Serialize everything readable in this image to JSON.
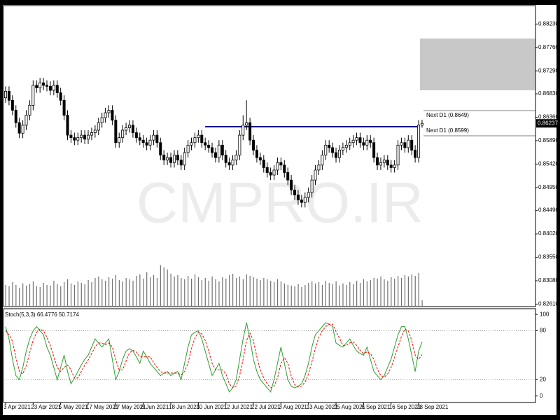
{
  "watermark": "CMPRO.IR",
  "chart_data": [
    {
      "type": "candlestick",
      "categories": [
        "3 Apr 2021",
        null,
        null,
        null,
        null,
        null,
        null,
        null,
        "23 Apr 2021",
        null,
        null,
        null,
        null,
        null,
        null,
        null,
        "5 May 2021",
        null,
        null,
        null,
        null,
        null,
        null,
        null,
        "17 May 2021",
        null,
        null,
        null,
        null,
        null,
        null,
        null,
        "27 May 2021",
        null,
        null,
        null,
        null,
        null,
        null,
        null,
        "8 Jun 2021",
        null,
        null,
        null,
        null,
        null,
        null,
        null,
        "18 Jun 2021",
        null,
        null,
        null,
        null,
        null,
        null,
        null,
        "30 Jun 2021",
        null,
        null,
        null,
        null,
        null,
        null,
        null,
        "12 Jul 2021",
        null,
        null,
        null,
        null,
        null,
        null,
        null,
        "22 Jul 2021",
        null,
        null,
        null,
        null,
        null,
        null,
        null,
        "3 Aug 2021",
        null,
        null,
        null,
        null,
        null,
        null,
        null,
        "13 Aug 2021",
        null,
        null,
        null,
        null,
        null,
        null,
        null,
        "25 Aug 2021",
        null,
        null,
        null,
        null,
        null,
        null,
        null,
        "6 Sep 2021",
        null,
        null,
        null,
        null,
        null,
        null,
        null,
        "16 Sep 2021",
        null,
        null,
        null,
        null,
        null,
        null,
        null,
        "28 Sep 2021",
        null
      ],
      "open": [
        0.8675,
        0.8688,
        0.867,
        0.865,
        0.8625,
        0.8604,
        0.862,
        0.864,
        0.866,
        0.87,
        0.8695,
        0.8705,
        0.87,
        0.8698,
        0.869,
        0.87,
        0.8685,
        0.867,
        0.864,
        0.86,
        0.8595,
        0.859,
        0.8595,
        0.86,
        0.8592,
        0.86,
        0.8605,
        0.861,
        0.8625,
        0.8635,
        0.8645,
        0.865,
        0.863,
        0.8585,
        0.8595,
        0.861,
        0.8615,
        0.862,
        0.8605,
        0.8595,
        0.859,
        0.8585,
        0.858,
        0.859,
        0.86,
        0.8585,
        0.856,
        0.855,
        0.8555,
        0.8545,
        0.856,
        0.855,
        0.854,
        0.8565,
        0.858,
        0.8585,
        0.8595,
        0.86,
        0.8585,
        0.858,
        0.8575,
        0.8565,
        0.8555,
        0.858,
        0.856,
        0.8545,
        0.854,
        0.855,
        0.856,
        0.86,
        0.862,
        0.8625,
        0.859,
        0.857,
        0.8555,
        0.855,
        0.8535,
        0.8525,
        0.852,
        0.853,
        0.8545,
        0.854,
        0.8525,
        0.851,
        0.849,
        0.848,
        0.847,
        0.8465,
        0.8475,
        0.8485,
        0.851,
        0.853,
        0.854,
        0.856,
        0.858,
        0.8575,
        0.8565,
        0.8555,
        0.857,
        0.8575,
        0.858,
        0.8585,
        0.859,
        0.8595,
        0.8585,
        0.858,
        0.859,
        0.8585,
        0.8555,
        0.854,
        0.8545,
        0.855,
        0.854,
        0.8535,
        0.854,
        0.858,
        0.8585,
        0.8575,
        0.859,
        0.857,
        0.8555,
        0.862
      ],
      "high": [
        0.8698,
        0.8698,
        0.868,
        0.866,
        0.8635,
        0.863,
        0.865,
        0.867,
        0.871,
        0.871,
        0.8715,
        0.8715,
        0.871,
        0.8708,
        0.871,
        0.871,
        0.8695,
        0.868,
        0.865,
        0.861,
        0.8605,
        0.8605,
        0.861,
        0.861,
        0.861,
        0.8615,
        0.862,
        0.8635,
        0.8645,
        0.8655,
        0.866,
        0.866,
        0.864,
        0.8605,
        0.862,
        0.8625,
        0.863,
        0.863,
        0.8615,
        0.8605,
        0.86,
        0.8595,
        0.86,
        0.861,
        0.861,
        0.8595,
        0.857,
        0.8565,
        0.8565,
        0.857,
        0.857,
        0.856,
        0.8575,
        0.859,
        0.8595,
        0.8605,
        0.861,
        0.861,
        0.8595,
        0.859,
        0.8585,
        0.8575,
        0.859,
        0.859,
        0.857,
        0.8555,
        0.856,
        0.857,
        0.861,
        0.864,
        0.867,
        0.8635,
        0.86,
        0.858,
        0.8565,
        0.856,
        0.8545,
        0.8535,
        0.854,
        0.8555,
        0.8555,
        0.855,
        0.8535,
        0.852,
        0.85,
        0.849,
        0.848,
        0.8485,
        0.8495,
        0.852,
        0.854,
        0.855,
        0.857,
        0.859,
        0.859,
        0.8585,
        0.8575,
        0.858,
        0.8585,
        0.859,
        0.8595,
        0.86,
        0.8605,
        0.8605,
        0.8595,
        0.86,
        0.86,
        0.8595,
        0.8565,
        0.8555,
        0.856,
        0.856,
        0.855,
        0.855,
        0.859,
        0.8595,
        0.8595,
        0.86,
        0.86,
        0.858,
        0.863,
        0.8631
      ],
      "low": [
        0.8665,
        0.866,
        0.864,
        0.8615,
        0.8594,
        0.8594,
        0.861,
        0.863,
        0.865,
        0.8685,
        0.8685,
        0.869,
        0.8688,
        0.868,
        0.868,
        0.8675,
        0.866,
        0.863,
        0.859,
        0.8585,
        0.858,
        0.858,
        0.8585,
        0.8582,
        0.8582,
        0.859,
        0.8595,
        0.86,
        0.8615,
        0.8625,
        0.8635,
        0.862,
        0.8575,
        0.8575,
        0.8585,
        0.86,
        0.8605,
        0.8595,
        0.8585,
        0.858,
        0.8575,
        0.857,
        0.857,
        0.858,
        0.8575,
        0.855,
        0.854,
        0.854,
        0.8535,
        0.8535,
        0.854,
        0.853,
        0.853,
        0.8555,
        0.857,
        0.8575,
        0.8585,
        0.8575,
        0.857,
        0.8565,
        0.8555,
        0.8545,
        0.8545,
        0.855,
        0.8535,
        0.853,
        0.853,
        0.854,
        0.855,
        0.859,
        0.861,
        0.858,
        0.856,
        0.8545,
        0.854,
        0.8525,
        0.8515,
        0.851,
        0.851,
        0.852,
        0.853,
        0.8515,
        0.85,
        0.848,
        0.847,
        0.846,
        0.8455,
        0.8455,
        0.8465,
        0.8475,
        0.85,
        0.852,
        0.853,
        0.855,
        0.8565,
        0.8555,
        0.8545,
        0.8545,
        0.856,
        0.8565,
        0.857,
        0.8575,
        0.858,
        0.8575,
        0.857,
        0.857,
        0.8575,
        0.8545,
        0.853,
        0.853,
        0.8535,
        0.853,
        0.8525,
        0.8525,
        0.853,
        0.857,
        0.8565,
        0.8565,
        0.856,
        0.8545,
        0.8545,
        0.8615
      ],
      "close": [
        0.8688,
        0.867,
        0.865,
        0.8625,
        0.8604,
        0.862,
        0.864,
        0.866,
        0.87,
        0.8695,
        0.8705,
        0.87,
        0.8698,
        0.869,
        0.87,
        0.8685,
        0.867,
        0.864,
        0.86,
        0.8595,
        0.859,
        0.8595,
        0.86,
        0.8592,
        0.86,
        0.8605,
        0.861,
        0.8625,
        0.8635,
        0.8645,
        0.865,
        0.863,
        0.8585,
        0.8595,
        0.861,
        0.8615,
        0.862,
        0.8605,
        0.8595,
        0.859,
        0.8585,
        0.858,
        0.859,
        0.86,
        0.8585,
        0.856,
        0.855,
        0.8555,
        0.8545,
        0.856,
        0.855,
        0.854,
        0.8565,
        0.858,
        0.8585,
        0.8595,
        0.86,
        0.8585,
        0.858,
        0.8575,
        0.8565,
        0.8555,
        0.858,
        0.856,
        0.8545,
        0.854,
        0.855,
        0.856,
        0.86,
        0.862,
        0.8625,
        0.859,
        0.857,
        0.8555,
        0.855,
        0.8535,
        0.8525,
        0.852,
        0.853,
        0.8545,
        0.854,
        0.8525,
        0.851,
        0.849,
        0.848,
        0.847,
        0.8465,
        0.8475,
        0.8485,
        0.851,
        0.853,
        0.854,
        0.856,
        0.858,
        0.8575,
        0.8565,
        0.8555,
        0.857,
        0.8575,
        0.858,
        0.8585,
        0.859,
        0.8595,
        0.8585,
        0.858,
        0.859,
        0.8585,
        0.8555,
        0.854,
        0.8545,
        0.855,
        0.854,
        0.8535,
        0.854,
        0.858,
        0.8585,
        0.8575,
        0.859,
        0.857,
        0.8555,
        0.862,
        0.86237
      ],
      "volume": [
        30,
        28,
        34,
        30,
        26,
        32,
        29,
        31,
        35,
        28,
        27,
        33,
        30,
        29,
        36,
        31,
        28,
        34,
        38,
        32,
        30,
        35,
        33,
        31,
        37,
        34,
        40,
        42,
        38,
        36,
        41,
        39,
        44,
        37,
        35,
        40,
        38,
        36,
        43,
        45,
        39,
        48,
        41,
        44,
        40,
        58,
        55,
        52,
        46,
        42,
        44,
        40,
        38,
        43,
        39,
        45,
        41,
        37,
        40,
        36,
        42,
        38,
        35,
        41,
        39,
        44,
        46,
        40,
        42,
        38,
        45,
        43,
        41,
        39,
        37,
        40,
        38,
        36,
        34,
        38,
        35,
        32,
        30,
        29,
        28,
        31,
        27,
        30,
        33,
        35,
        32,
        34,
        30,
        36,
        33,
        31,
        35,
        29,
        32,
        30,
        34,
        31,
        36,
        33,
        38,
        35,
        37,
        40,
        39,
        42,
        38,
        36,
        41,
        39,
        43,
        40,
        44,
        42,
        45,
        43,
        47,
        8
      ],
      "ylim": [
        0.8256,
        0.886
      ],
      "yticks": [
        {
          "value": 0.8823,
          "label": "0.88230"
        },
        {
          "value": 0.8776,
          "label": "0.87760"
        },
        {
          "value": 0.8729,
          "label": "0.87290"
        },
        {
          "value": 0.8683,
          "label": "0.86830"
        },
        {
          "value": 0.8636,
          "label": "0.86360"
        },
        {
          "value": 0.8589,
          "label": "0.85890"
        },
        {
          "value": 0.8542,
          "label": "0.85420"
        },
        {
          "value": 0.8495,
          "label": "0.84950"
        },
        {
          "value": 0.8449,
          "label": "0.84490"
        },
        {
          "value": 0.8402,
          "label": "0.84020"
        },
        {
          "value": 0.8355,
          "label": "0.83550"
        },
        {
          "value": 0.8308,
          "label": "0.83080"
        },
        {
          "value": 0.8261,
          "label": "0.82610"
        }
      ],
      "annotations": [
        "Next D1 (0.8649)",
        "Next D1 (0.8599)"
      ]
    },
    {
      "type": "line",
      "title": "Stoch(5,3,3)",
      "ylim": [
        -8,
        107
      ],
      "yticks": [
        100,
        80,
        20,
        0
      ],
      "levels": [
        80,
        20
      ],
      "series": [
        {
          "color": "#2e9e2e",
          "values": [
            85,
            70,
            45,
            25,
            20,
            35,
            55,
            70,
            80,
            85,
            80,
            75,
            60,
            50,
            35,
            20,
            35,
            50,
            30,
            15,
            22,
            30,
            38,
            45,
            50,
            60,
            70,
            65,
            60,
            65,
            70,
            45,
            20,
            30,
            45,
            55,
            58,
            55,
            48,
            40,
            55,
            48,
            40,
            35,
            30,
            25,
            28,
            30,
            25,
            28,
            30,
            20,
            40,
            60,
            75,
            78,
            80,
            70,
            55,
            40,
            25,
            32,
            40,
            25,
            15,
            5,
            10,
            20,
            45,
            70,
            90,
            70,
            45,
            30,
            20,
            15,
            10,
            5,
            20,
            40,
            60,
            40,
            20,
            12,
            10,
            12,
            15,
            25,
            40,
            60,
            75,
            80,
            85,
            90,
            88,
            85,
            65,
            62,
            60,
            65,
            70,
            62,
            55,
            52,
            50,
            60,
            45,
            30,
            25,
            20,
            25,
            35,
            45,
            60,
            75,
            85,
            85,
            70,
            50,
            30,
            55,
            66.4776
          ]
        },
        {
          "color": "#ff0000",
          "values": [
            80,
            75,
            67,
            47,
            30,
            27,
            37,
            53,
            68,
            78,
            82,
            80,
            72,
            62,
            48,
            35,
            30,
            35,
            38,
            32,
            22,
            22,
            30,
            38,
            44,
            52,
            60,
            65,
            65,
            63,
            65,
            60,
            45,
            32,
            32,
            43,
            53,
            56,
            54,
            48,
            48,
            48,
            48,
            41,
            35,
            30,
            28,
            28,
            28,
            28,
            28,
            26,
            30,
            40,
            58,
            71,
            78,
            76,
            68,
            55,
            40,
            32,
            32,
            32,
            27,
            15,
            10,
            12,
            25,
            45,
            68,
            77,
            68,
            48,
            32,
            22,
            15,
            10,
            12,
            22,
            40,
            47,
            40,
            24,
            14,
            11,
            12,
            17,
            27,
            42,
            58,
            72,
            80,
            85,
            88,
            88,
            79,
            71,
            62,
            62,
            65,
            66,
            62,
            56,
            52,
            54,
            52,
            45,
            33,
            25,
            23,
            27,
            35,
            47,
            60,
            73,
            82,
            80,
            68,
            50,
            45,
            50.7174
          ]
        }
      ]
    }
  ]
}
